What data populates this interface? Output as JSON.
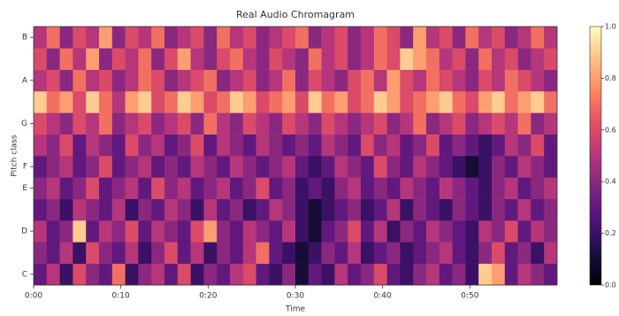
{
  "chart_data": {
    "type": "heatmap",
    "title": "Real Audio Chromagram",
    "x_label": "Time",
    "y_label": "Pitch class",
    "colormap": "magma",
    "categories": [
      "C",
      null,
      "D",
      null,
      "E",
      "F",
      null,
      "G",
      null,
      "A",
      null,
      "B"
    ],
    "xlim": [
      0,
      60
    ],
    "xticks": [
      {
        "value": 0,
        "label": "0:00"
      },
      {
        "value": 10,
        "label": "0:10"
      },
      {
        "value": 20,
        "label": "0:20"
      },
      {
        "value": 30,
        "label": "0:30"
      },
      {
        "value": 40,
        "label": "0:40"
      },
      {
        "value": 50,
        "label": "0:50"
      }
    ],
    "clim": [
      0,
      1
    ],
    "cticks": [
      {
        "value": 0,
        "label": "0.0"
      },
      {
        "value": 0.2,
        "label": "0.2"
      },
      {
        "value": 0.4,
        "label": "0.4"
      },
      {
        "value": 0.6,
        "label": "0.6"
      },
      {
        "value": 0.8,
        "label": "0.8"
      },
      {
        "value": 1,
        "label": "1.0"
      }
    ],
    "values": [
      [
        0.3,
        0.5,
        0.2,
        0.6,
        0.4,
        0.3,
        0.7,
        0.2,
        0.4,
        0.5,
        0.3,
        0.6,
        0.2,
        0.4,
        0.3,
        0.5,
        0.6,
        0.3,
        0.2,
        0.4,
        0.1,
        0.3,
        0.2,
        0.5,
        0.3,
        0.4,
        0.6,
        0.3,
        0.2,
        0.4,
        0.5,
        0.3,
        0.4,
        0.2,
        0.9,
        0.8,
        0.3,
        0.5,
        0.4,
        0.3
      ],
      [
        0.4,
        0.3,
        0.5,
        0.2,
        0.6,
        0.4,
        0.3,
        0.5,
        0.2,
        0.4,
        0.6,
        0.3,
        0.5,
        0.2,
        0.4,
        0.3,
        0.5,
        0.7,
        0.3,
        0.2,
        0.1,
        0.2,
        0.4,
        0.3,
        0.5,
        0.2,
        0.3,
        0.4,
        0.2,
        0.3,
        0.4,
        0.5,
        0.3,
        0.2,
        0.4,
        0.6,
        0.3,
        0.4,
        0.2,
        0.5
      ],
      [
        0.5,
        0.3,
        0.4,
        0.9,
        0.3,
        0.5,
        0.4,
        0.6,
        0.3,
        0.5,
        0.4,
        0.3,
        0.6,
        0.8,
        0.4,
        0.3,
        0.5,
        0.4,
        0.3,
        0.5,
        0.2,
        0.1,
        0.3,
        0.4,
        0.6,
        0.3,
        0.5,
        0.2,
        0.4,
        0.3,
        0.5,
        0.4,
        0.3,
        0.2,
        0.5,
        0.4,
        0.6,
        0.3,
        0.5,
        0.4
      ],
      [
        0.3,
        0.4,
        0.2,
        0.5,
        0.4,
        0.3,
        0.5,
        0.2,
        0.4,
        0.3,
        0.5,
        0.4,
        0.2,
        0.5,
        0.3,
        0.4,
        0.2,
        0.3,
        0.5,
        0.4,
        0.2,
        0.1,
        0.2,
        0.3,
        0.4,
        0.2,
        0.3,
        0.5,
        0.2,
        0.4,
        0.3,
        0.2,
        0.4,
        0.3,
        0.2,
        0.4,
        0.3,
        0.5,
        0.3,
        0.4
      ],
      [
        0.4,
        0.5,
        0.3,
        0.4,
        0.6,
        0.3,
        0.4,
        0.5,
        0.3,
        0.6,
        0.4,
        0.5,
        0.3,
        0.4,
        0.5,
        0.3,
        0.4,
        0.6,
        0.3,
        0.4,
        0.2,
        0.3,
        0.2,
        0.4,
        0.5,
        0.3,
        0.4,
        0.3,
        0.5,
        0.4,
        0.3,
        0.5,
        0.4,
        0.3,
        0.2,
        0.4,
        0.5,
        0.3,
        0.4,
        0.5
      ],
      [
        0.3,
        0.4,
        0.5,
        0.3,
        0.4,
        0.6,
        0.3,
        0.4,
        0.5,
        0.3,
        0.4,
        0.3,
        0.5,
        0.4,
        0.3,
        0.5,
        0.4,
        0.3,
        0.4,
        0.5,
        0.3,
        0.2,
        0.3,
        0.5,
        0.4,
        0.3,
        0.6,
        0.4,
        0.3,
        0.5,
        0.4,
        0.3,
        0.2,
        0.1,
        0.2,
        0.4,
        0.3,
        0.5,
        0.4,
        0.3
      ],
      [
        0.5,
        0.4,
        0.6,
        0.3,
        0.5,
        0.4,
        0.3,
        0.6,
        0.4,
        0.5,
        0.3,
        0.4,
        0.6,
        0.3,
        0.5,
        0.4,
        0.3,
        0.5,
        0.4,
        0.3,
        0.4,
        0.3,
        0.5,
        0.4,
        0.3,
        0.6,
        0.4,
        0.5,
        0.3,
        0.4,
        0.6,
        0.3,
        0.4,
        0.3,
        0.2,
        0.3,
        0.5,
        0.4,
        0.6,
        0.3
      ],
      [
        0.6,
        0.5,
        0.4,
        0.6,
        0.5,
        0.7,
        0.4,
        0.5,
        0.6,
        0.4,
        0.5,
        0.6,
        0.4,
        0.7,
        0.5,
        0.4,
        0.6,
        0.5,
        0.4,
        0.6,
        0.5,
        0.4,
        0.6,
        0.5,
        0.4,
        0.5,
        0.6,
        0.4,
        0.5,
        0.7,
        0.4,
        0.5,
        0.6,
        0.4,
        0.5,
        0.6,
        0.5,
        0.7,
        0.4,
        0.5
      ],
      [
        0.9,
        0.7,
        0.8,
        0.6,
        0.9,
        0.7,
        0.5,
        0.8,
        0.9,
        0.6,
        0.7,
        0.9,
        0.8,
        0.6,
        0.7,
        0.9,
        0.8,
        0.6,
        0.7,
        0.8,
        0.6,
        0.9,
        0.7,
        0.8,
        0.6,
        0.7,
        0.9,
        0.8,
        0.6,
        0.7,
        0.8,
        0.9,
        0.7,
        0.6,
        0.8,
        0.9,
        0.7,
        0.8,
        0.9,
        0.7
      ],
      [
        0.5,
        0.6,
        0.4,
        0.7,
        0.5,
        0.6,
        0.4,
        0.5,
        0.7,
        0.6,
        0.4,
        0.5,
        0.6,
        0.7,
        0.4,
        0.5,
        0.6,
        0.4,
        0.5,
        0.7,
        0.4,
        0.6,
        0.5,
        0.4,
        0.6,
        0.7,
        0.5,
        0.8,
        0.6,
        0.5,
        0.7,
        0.6,
        0.5,
        0.4,
        0.6,
        0.5,
        0.7,
        0.6,
        0.5,
        0.4
      ],
      [
        0.6,
        0.4,
        0.7,
        0.5,
        0.8,
        0.4,
        0.6,
        0.5,
        0.7,
        0.4,
        0.6,
        0.8,
        0.5,
        0.4,
        0.6,
        0.7,
        0.5,
        0.4,
        0.6,
        0.5,
        0.4,
        0.7,
        0.5,
        0.6,
        0.4,
        0.5,
        0.7,
        0.6,
        0.9,
        0.8,
        0.7,
        0.5,
        0.6,
        0.4,
        0.7,
        0.5,
        0.6,
        0.4,
        0.5,
        0.6
      ],
      [
        0.5,
        0.7,
        0.4,
        0.6,
        0.5,
        0.8,
        0.4,
        0.6,
        0.5,
        0.7,
        0.4,
        0.5,
        0.6,
        0.4,
        0.7,
        0.5,
        0.6,
        0.4,
        0.5,
        0.6,
        0.7,
        0.4,
        0.5,
        0.6,
        0.4,
        0.5,
        0.7,
        0.6,
        0.4,
        0.8,
        0.5,
        0.6,
        0.4,
        0.7,
        0.5,
        0.6,
        0.4,
        0.5,
        0.7,
        0.5
      ]
    ]
  }
}
